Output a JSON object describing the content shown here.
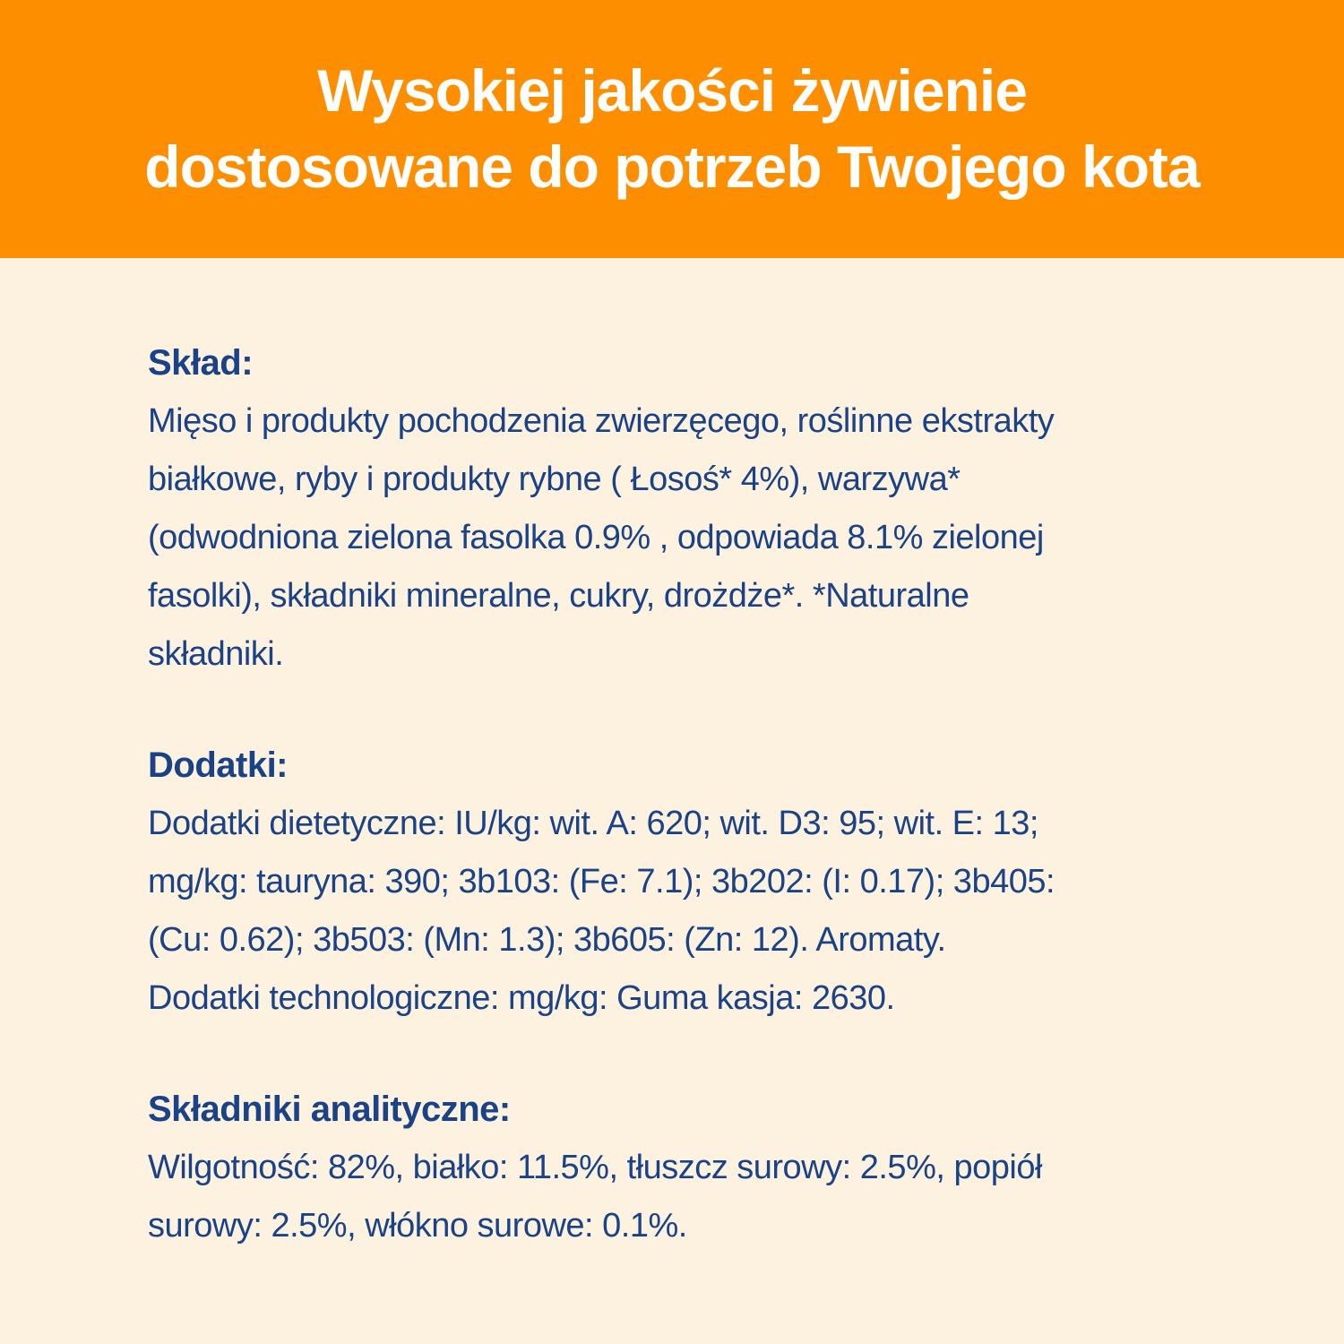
{
  "colors": {
    "banner": "#FC8E00",
    "background": "#FDF1DF",
    "text": "#1A4287",
    "header_text": "#FFFFFF"
  },
  "header": {
    "title": "Wysokiej jakości żywienie\ndostosowane do potrzeb Twojego kota"
  },
  "sections": [
    {
      "heading": "Skład:",
      "body": "Mięso i produkty pochodzenia zwierzęcego, roślinne ekstrakty\nbiałkowe, ryby i produkty rybne ( Łosoś* 4%), warzywa*\n(odwodniona zielona fasolka 0.9% , odpowiada 8.1% zielonej\nfasolki), składniki mineralne, cukry, drożdże*. *Naturalne\nskładniki."
    },
    {
      "heading": "Dodatki:",
      "body": "Dodatki dietetyczne: IU/kg: wit. A: 620; wit. D3: 95; wit. E: 13;\nmg/kg: tauryna: 390; 3b103: (Fe: 7.1); 3b202: (I: 0.17); 3b405:\n(Cu: 0.62); 3b503: (Mn: 1.3); 3b605: (Zn: 12). Aromaty.\nDodatki technologiczne: mg/kg: Guma kasja: 2630."
    },
    {
      "heading": "Składniki analityczne:",
      "body": "Wilgotność: 82%, białko: 11.5%, tłuszcz surowy: 2.5%, popiół\nsurowy: 2.5%, włókno surowe: 0.1%."
    }
  ]
}
